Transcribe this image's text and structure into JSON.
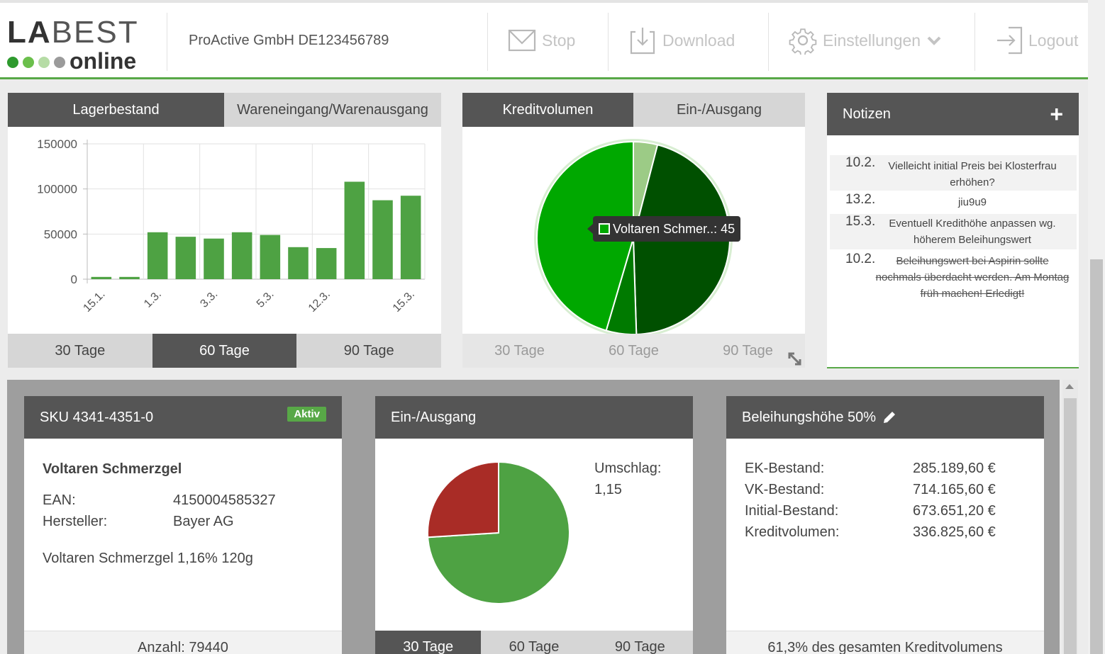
{
  "header": {
    "logo_top": [
      "LA",
      "BEST"
    ],
    "logo_bottom": "online",
    "logo_dot_colors": [
      "#2e9a2e",
      "#6bbf4c",
      "#b6dca6",
      "#9b9b9b"
    ],
    "company": "ProActive GmbH DE123456789",
    "nav": [
      {
        "label": "Stop",
        "icon": "envelope-icon"
      },
      {
        "label": "Download",
        "icon": "download-icon"
      },
      {
        "label": "Einstellungen",
        "icon": "gear-icon"
      },
      {
        "label": "Logout",
        "icon": "logout-icon"
      }
    ]
  },
  "stock_panel": {
    "tabs": [
      "Lagerbestand",
      "Wareneingang/Warenausgang"
    ],
    "active_tab": 0,
    "ranges": [
      "30 Tage",
      "60 Tage",
      "90 Tage"
    ],
    "active_range": 1
  },
  "credit_panel": {
    "tabs": [
      "Kreditvolumen",
      "Ein-/Ausgang"
    ],
    "active_tab": 0,
    "ranges": [
      "30 Tage",
      "60 Tage",
      "90 Tage"
    ],
    "tooltip": "Voltaren Schmer..: 45"
  },
  "notes": {
    "title": "Notizen",
    "add_icon": "plus-icon",
    "items": [
      {
        "date": "10.2.",
        "text": "Vielleicht initial Preis bei Klosterfrau erhöhen?",
        "done": false
      },
      {
        "date": "13.2.",
        "text": "jiu9u9",
        "done": false
      },
      {
        "date": "15.3.",
        "text": "Eventuell Kredithöhe anpassen wg. höherem Beleihungswert",
        "done": false
      },
      {
        "date": "10.2.",
        "text": "Beleihungswert bei Aspirin sollte nochmals überdacht werden. Am Montag früh machen! Erledigt!",
        "done": true
      }
    ]
  },
  "sku_card": {
    "title": "SKU 4341-4351-0",
    "badge": "Aktiv",
    "product": "Voltaren Schmerzgel",
    "ean_label": "EAN:",
    "ean_value": "4150004585327",
    "maker_label": "Hersteller:",
    "maker_value": "Bayer AG",
    "description": "Voltaren Schmerzgel 1,16% 120g",
    "footer": "Anzahl: 79440"
  },
  "inout_card": {
    "title": "Ein-/Ausgang",
    "turnover_label": "Umschlag:",
    "turnover_value": "1,15",
    "ranges": [
      "30 Tage",
      "60 Tage",
      "90 Tage"
    ],
    "active_range": 0
  },
  "loan_card": {
    "title": "Beleihungshöhe 50%",
    "edit_icon": "pencil-icon",
    "rows": [
      {
        "label": "EK-Bestand:",
        "value": "285.189,60 €"
      },
      {
        "label": "VK-Bestand:",
        "value": "714.165,60 €"
      },
      {
        "label": "Initial-Bestand:",
        "value": "673.651,20 €"
      },
      {
        "label": "Kreditvolumen:",
        "value": "336.825,60 €"
      }
    ],
    "footer": "61,3% des gesamten Kreditvolumens"
  },
  "chart_data": [
    {
      "type": "bar",
      "title": "",
      "categories": [
        "15.1.",
        "",
        "1.3.",
        "",
        "3.3.",
        "",
        "5.3.",
        "",
        "12.3.",
        "",
        "",
        "15.3."
      ],
      "values": [
        2500,
        2500,
        52000,
        47000,
        45000,
        52000,
        49000,
        35500,
        34500,
        108000,
        87500,
        92500
      ],
      "ylim": [
        0,
        150000
      ],
      "yticks": [
        0,
        50000,
        100000,
        150000
      ],
      "grid": true,
      "color": "#4ea243"
    },
    {
      "type": "pie",
      "slices": [
        {
          "label": "",
          "value": 4,
          "color": "#9ccb86"
        },
        {
          "label": "",
          "value": 45,
          "color": "#005000"
        },
        {
          "label": "",
          "value": 5,
          "color": "#007a00"
        },
        {
          "label": "Voltaren Schmer..",
          "value": 45,
          "color": "#00a800"
        }
      ]
    },
    {
      "type": "pie",
      "slices": [
        {
          "label": "",
          "value": 74,
          "color": "#4ea243"
        },
        {
          "label": "",
          "value": 26,
          "color": "#a92c26"
        }
      ]
    }
  ]
}
